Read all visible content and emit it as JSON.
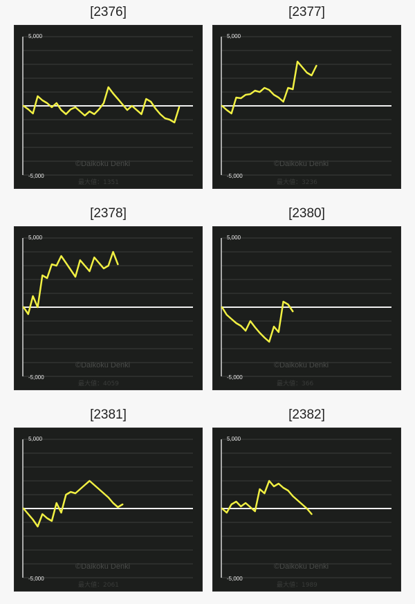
{
  "chart_data": [
    {
      "type": "line",
      "title": "[2376]",
      "y_top_label": "5,000",
      "y_bottom_label": "-5,000",
      "ylim": [
        -5000,
        5000
      ],
      "watermark": "©Daikoku Denki",
      "footer": "最大値：1351",
      "line_color": "#f1f043",
      "series": [
        {
          "values": [
            0,
            -250,
            -550,
            700,
            400,
            200,
            -100,
            200,
            -300,
            -600,
            -250,
            -100,
            -400,
            -700,
            -400,
            -600,
            -250,
            200,
            1350,
            900,
            500,
            100,
            -300,
            0,
            -300,
            -600,
            500,
            300,
            -200,
            -600,
            -900,
            -1000,
            -1200,
            -100
          ]
        }
      ]
    },
    {
      "type": "line",
      "title": "[2377]",
      "y_top_label": "5,000",
      "y_bottom_label": "-5,000",
      "ylim": [
        -5000,
        5000
      ],
      "watermark": "©Daikoku Denki",
      "footer": "最大値：3236",
      "line_color": "#f1f043",
      "series": [
        {
          "values": [
            0,
            -300,
            -550,
            600,
            550,
            800,
            850,
            1100,
            1000,
            1300,
            1150,
            800,
            600,
            300,
            1300,
            1200,
            3200,
            2800,
            2400,
            2200,
            2900
          ]
        }
      ]
    },
    {
      "type": "line",
      "title": "[2378]",
      "y_top_label": "5,000",
      "y_bottom_label": "-5,000",
      "ylim": [
        -5000,
        5000
      ],
      "watermark": "©Daikoku Denki",
      "footer": "最大値：4059",
      "line_color": "#f1f043",
      "series": [
        {
          "values": [
            0,
            -500,
            800,
            0,
            2300,
            2100,
            3100,
            3000,
            3700,
            3200,
            2700,
            2200,
            3400,
            3000,
            2600,
            3600,
            3200,
            2800,
            3000,
            4000,
            3100
          ]
        }
      ]
    },
    {
      "type": "line",
      "title": "[2380]",
      "y_top_label": "5,000",
      "y_bottom_label": "-5,000",
      "ylim": [
        -5000,
        5000
      ],
      "watermark": "©Daikoku Denki",
      "footer": "最大値：366",
      "line_color": "#f1f043",
      "series": [
        {
          "values": [
            0,
            -550,
            -850,
            -1150,
            -1350,
            -1700,
            -1000,
            -1450,
            -1850,
            -2200,
            -2500,
            -1400,
            -1800,
            400,
            200,
            -300
          ]
        }
      ]
    },
    {
      "type": "line",
      "title": "[2381]",
      "y_top_label": "5,000",
      "y_bottom_label": "-5,000",
      "ylim": [
        -5000,
        5000
      ],
      "watermark": "©Daikoku Denki",
      "footer": "最大値：2061",
      "line_color": "#f1f043",
      "series": [
        {
          "values": [
            0,
            -400,
            -800,
            -1300,
            -400,
            -700,
            -900,
            400,
            -300,
            1000,
            1200,
            1100,
            1400,
            1700,
            2000,
            1700,
            1400,
            1100,
            800,
            400,
            100,
            300
          ]
        }
      ]
    },
    {
      "type": "line",
      "title": "[2382]",
      "y_top_label": "5,000",
      "y_bottom_label": "-5,000",
      "ylim": [
        -5000,
        5000
      ],
      "watermark": "©Daikoku Denki",
      "footer": "最大値：1989",
      "line_color": "#f1f043",
      "series": [
        {
          "values": [
            0,
            -300,
            300,
            500,
            150,
            400,
            100,
            -200,
            1400,
            1100,
            2000,
            1600,
            1800,
            1500,
            1300,
            900,
            600,
            300,
            0,
            -400
          ]
        }
      ]
    }
  ]
}
